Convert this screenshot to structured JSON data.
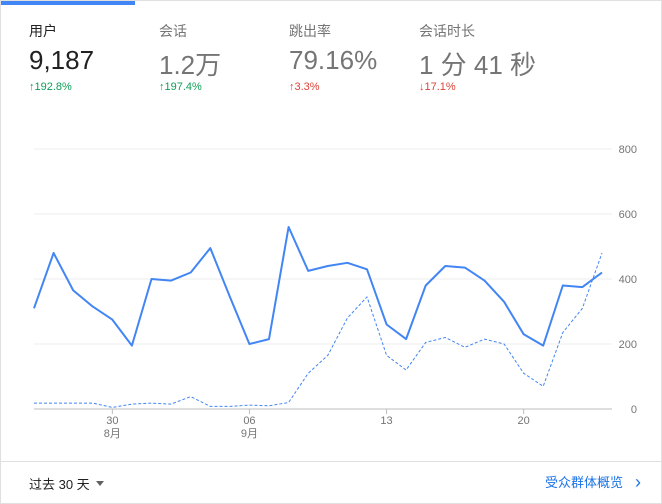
{
  "metrics": [
    {
      "label": "用户",
      "value": "9,187",
      "delta": "↑192.8%",
      "delta_type": "up-green"
    },
    {
      "label": "会话",
      "value": "1.2万",
      "delta": "↑197.4%",
      "delta_type": "up-green"
    },
    {
      "label": "跳出率",
      "value": "79.16%",
      "delta": "↑3.3%",
      "delta_type": "up-red"
    },
    {
      "label": "会话时长",
      "value": "1 分 41 秒",
      "delta": "↓17.1%",
      "delta_type": "down-red"
    }
  ],
  "footer": {
    "date_range": "过去 30 天",
    "audience_link": "受众群体概览"
  },
  "chart_data": {
    "type": "line",
    "ylim": [
      0,
      800
    ],
    "y_ticks": [
      "800",
      "600",
      "400",
      "200",
      "0"
    ],
    "x_ticks": [
      {
        "index": 4,
        "day": "30",
        "month": "8月"
      },
      {
        "index": 11,
        "day": "06",
        "month": "9月"
      },
      {
        "index": 18,
        "day": "13",
        "month": ""
      },
      {
        "index": 25,
        "day": "20",
        "month": ""
      }
    ],
    "series": [
      {
        "style": "solid",
        "color": "#4285f4",
        "values": [
          310,
          480,
          365,
          315,
          275,
          195,
          400,
          395,
          420,
          495,
          345,
          200,
          215,
          560,
          425,
          440,
          450,
          430,
          260,
          215,
          380,
          440,
          435,
          395,
          330,
          230,
          195,
          380,
          375,
          420
        ]
      },
      {
        "style": "dashed",
        "color": "#4285f4",
        "values": [
          18,
          18,
          18,
          18,
          5,
          15,
          18,
          15,
          38,
          8,
          8,
          12,
          10,
          20,
          110,
          165,
          280,
          345,
          165,
          120,
          205,
          220,
          190,
          215,
          200,
          110,
          70,
          235,
          310,
          480
        ]
      }
    ]
  }
}
